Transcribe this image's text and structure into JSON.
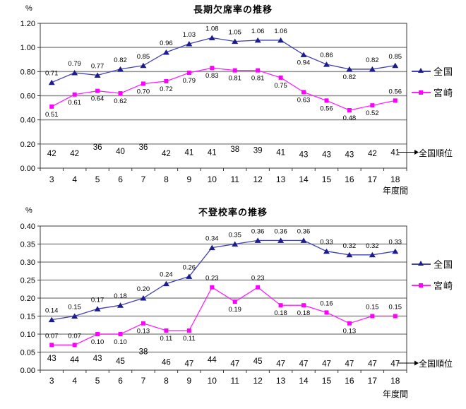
{
  "charts": [
    {
      "title": "長期欠席率の推移",
      "y_unit": "%",
      "xlabel": "年度間",
      "rank_label": "全国順位",
      "type": "line",
      "legend_position": "right",
      "grid": true,
      "categories": [
        "3",
        "4",
        "5",
        "6",
        "7",
        "8",
        "9",
        "10",
        "11",
        "12",
        "13",
        "14",
        "15",
        "16",
        "17",
        "18"
      ],
      "ylim": [
        0,
        1.2
      ],
      "ytick": 0.2,
      "ytick_labels": [
        "0.00",
        "0.20",
        "0.40",
        "0.60",
        "0.80",
        "1.00",
        "1.20"
      ],
      "series": [
        {
          "name": "全国",
          "color": "#4242B4",
          "marker": "triangle",
          "marker_color": "#1C1C8E",
          "values": [
            0.71,
            0.79,
            0.77,
            0.82,
            0.85,
            0.96,
            1.03,
            1.08,
            1.05,
            1.06,
            1.06,
            0.94,
            0.86,
            0.82,
            0.82,
            0.85
          ],
          "label_pos": [
            "above",
            "above",
            "above",
            "above",
            "above",
            "above",
            "above",
            "above",
            "above",
            "above",
            "above",
            "below",
            "above",
            "below",
            "above",
            "above"
          ]
        },
        {
          "name": "宮崎",
          "color": "#FF22FF",
          "marker": "square",
          "marker_color": "#FF00FF",
          "values": [
            0.51,
            0.61,
            0.64,
            0.62,
            0.7,
            0.72,
            0.79,
            0.83,
            0.81,
            0.81,
            0.75,
            0.63,
            0.56,
            0.48,
            0.52,
            0.56
          ],
          "label_pos": [
            "below",
            "below",
            "below",
            "below",
            "below",
            "below",
            "below",
            "below",
            "below",
            "below",
            "below",
            "below",
            "below",
            "below",
            "below",
            "above"
          ]
        }
      ],
      "ranks": [
        42,
        42,
        36,
        40,
        36,
        42,
        41,
        41,
        38,
        39,
        41,
        43,
        43,
        43,
        42,
        41
      ]
    },
    {
      "title": "不登校率の推移",
      "y_unit": "%",
      "xlabel": "年度間",
      "rank_label": "全国順位",
      "type": "line",
      "legend_position": "right",
      "grid": true,
      "categories": [
        "3",
        "4",
        "5",
        "6",
        "7",
        "8",
        "9",
        "10",
        "11",
        "12",
        "13",
        "14",
        "15",
        "16",
        "17",
        "18"
      ],
      "ylim": [
        0,
        0.4
      ],
      "ytick": 0.05,
      "ytick_labels": [
        "0.00",
        "0.05",
        "0.10",
        "0.15",
        "0.20",
        "0.25",
        "0.30",
        "0.35",
        "0.40"
      ],
      "series": [
        {
          "name": "全国",
          "color": "#4242B4",
          "marker": "triangle",
          "marker_color": "#1C1C8E",
          "values": [
            0.14,
            0.15,
            0.17,
            0.18,
            0.2,
            0.24,
            0.26,
            0.34,
            0.35,
            0.36,
            0.36,
            0.36,
            0.33,
            0.32,
            0.32,
            0.33
          ],
          "label_pos": [
            "above",
            "above",
            "above",
            "above",
            "above",
            "above",
            "above",
            "above",
            "above",
            "above",
            "above",
            "above",
            "above",
            "above",
            "above",
            "above"
          ]
        },
        {
          "name": "宮崎",
          "color": "#FF22FF",
          "marker": "square",
          "marker_color": "#FF00FF",
          "values": [
            0.07,
            0.07,
            0.1,
            0.1,
            0.13,
            0.11,
            0.11,
            0.23,
            0.19,
            0.23,
            0.18,
            0.18,
            0.16,
            0.13,
            0.15,
            0.15
          ],
          "label_pos": [
            "above",
            "above",
            "below",
            "below",
            "below",
            "below",
            "below",
            "above",
            "below",
            "above",
            "below",
            "below",
            "above",
            "below",
            "above",
            "above"
          ]
        }
      ],
      "ranks": [
        43,
        44,
        43,
        45,
        38,
        46,
        47,
        44,
        47,
        45,
        47,
        47,
        47,
        47,
        47,
        47
      ]
    }
  ],
  "colors": {
    "gridline": "#8F8F8F",
    "axis_border": "#3A3A3A",
    "text": "#000000"
  }
}
